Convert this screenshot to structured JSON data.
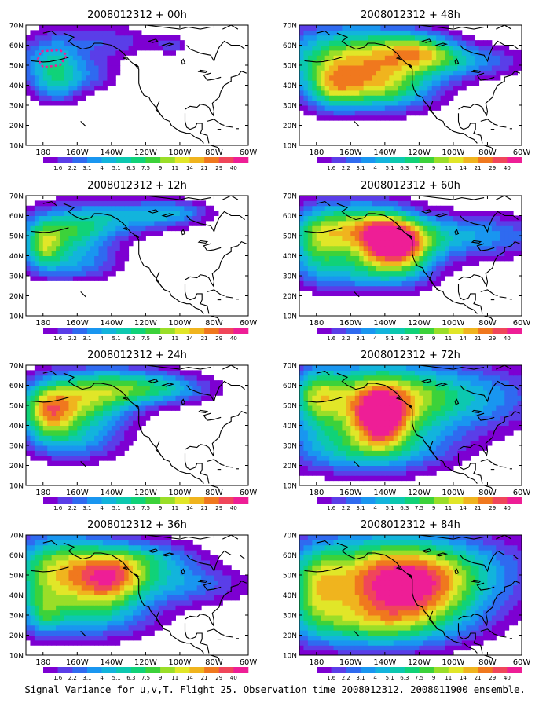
{
  "figure": {
    "caption": "Signal Variance for u,v,T. Flight 25. Observation time 2008012312. 2008011900 ensemble."
  },
  "panels": [
    {
      "id": "00h",
      "title": "2008012312 + 00h",
      "lead_hours": 0
    },
    {
      "id": "48h",
      "title": "2008012312 + 48h",
      "lead_hours": 48
    },
    {
      "id": "12h",
      "title": "2008012312 + 12h",
      "lead_hours": 12
    },
    {
      "id": "60h",
      "title": "2008012312 + 60h",
      "lead_hours": 60
    },
    {
      "id": "24h",
      "title": "2008012312 + 24h",
      "lead_hours": 24
    },
    {
      "id": "72h",
      "title": "2008012312 + 72h",
      "lead_hours": 72
    },
    {
      "id": "36h",
      "title": "2008012312 + 36h",
      "lead_hours": 36
    },
    {
      "id": "84h",
      "title": "2008012312 + 84h",
      "lead_hours": 84
    }
  ],
  "map": {
    "lon_ticks": [
      "180",
      "160W",
      "140W",
      "120W",
      "100W",
      "80W",
      "60W"
    ],
    "lat_ticks": [
      "10N",
      "20N",
      "30N",
      "40N",
      "50N",
      "60N",
      "70N"
    ],
    "lon_range": [
      -190,
      -60
    ],
    "lat_range": [
      10,
      70
    ]
  },
  "colorbar": {
    "labels": [
      "1.6",
      "2.2",
      "3.1",
      "4",
      "5.1",
      "6.3",
      "7.5",
      "9",
      "11",
      "14",
      "21",
      "29",
      "40"
    ],
    "colors": [
      "#7d00d2",
      "#5a3ee8",
      "#2f6af0",
      "#1996f0",
      "#12b4dc",
      "#0cc8b0",
      "#10d278",
      "#3cd23a",
      "#9ade28",
      "#e1e628",
      "#f0b41e",
      "#f0781e",
      "#f0465a",
      "#ee1e96"
    ]
  }
}
